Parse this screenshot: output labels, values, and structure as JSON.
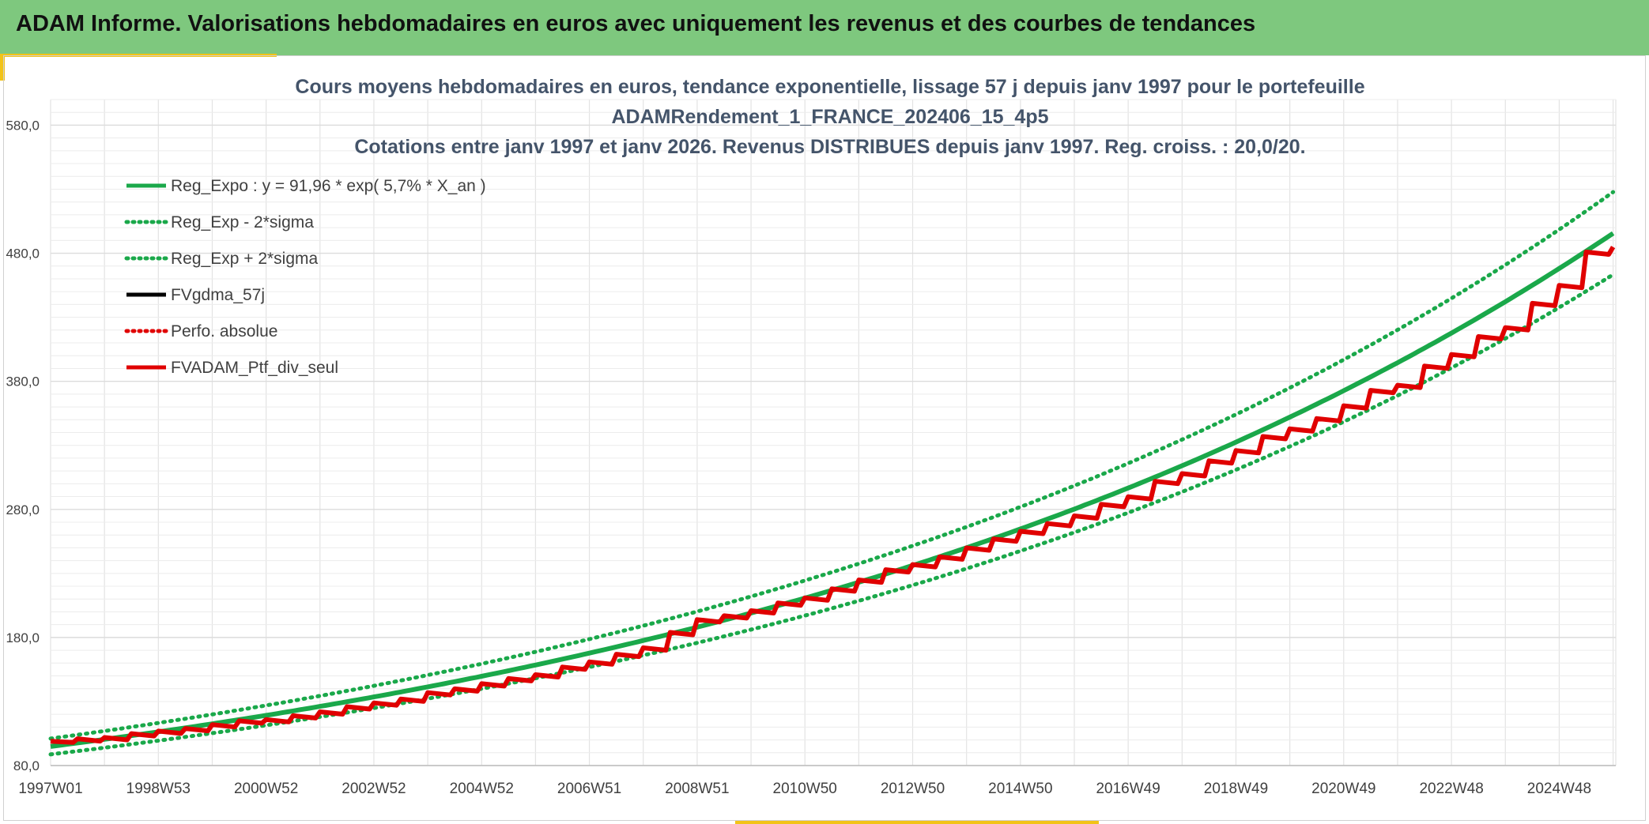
{
  "header": {
    "title": "ADAM Informe. Valorisations hebdomadaires en euros avec uniquement les revenus et des courbes de tendances"
  },
  "colors": {
    "header_bg": "#7ec87e",
    "accent": "#f2c318",
    "regression": "#1aa84a",
    "smoothed": "#000000",
    "portfolio": "#e00000"
  },
  "chart_data": {
    "type": "line",
    "title": [
      "Cours moyens hebdomadaires en euros, tendance exponentielle, lissage 57 j depuis janv 1997 pour le portefeuille",
      "ADAMRendement_1_FRANCE_202406_15_4p5",
      "Cotations entre janv 1997 et janv 2026. Revenus DISTRIBUES depuis janv 1997. Reg. croiss. : 20,0/20."
    ],
    "xlabel": "",
    "ylabel": "",
    "ylim": [
      80,
      600
    ],
    "xlim": [
      1997.0,
      2026.05
    ],
    "grid": true,
    "legend_position": "top-left",
    "y_ticks": [
      "80,0",
      "180,0",
      "280,0",
      "380,0",
      "480,0",
      "580,0"
    ],
    "y_tick_values": [
      80,
      180,
      280,
      380,
      480,
      580
    ],
    "x_ticks": [
      "1997W01",
      "1998W53",
      "2000W52",
      "2002W52",
      "2004W52",
      "2006W51",
      "2008W51",
      "2010W50",
      "2012W50",
      "2014W50",
      "2016W49",
      "2018W49",
      "2020W49",
      "2022W48",
      "2024W48"
    ],
    "x_tick_values": [
      1997.0,
      1999.0,
      2001.0,
      2003.0,
      2005.0,
      2007.0,
      2009.0,
      2011.0,
      2013.0,
      2015.0,
      2017.0,
      2019.0,
      2021.0,
      2023.0,
      2025.0
    ],
    "regression": {
      "a": 91.96,
      "growth": 0.057,
      "sigma_band": 0.065
    },
    "series": [
      {
        "name": "Reg_Expo : y = 91,96 * exp( 5,7% *  X_an )",
        "color": "#1aa84a",
        "style": "solid"
      },
      {
        "name": "Reg_Exp - 2*sigma",
        "color": "#1aa84a",
        "style": "dotted"
      },
      {
        "name": "Reg_Exp + 2*sigma",
        "color": "#1aa84a",
        "style": "dotted"
      },
      {
        "name": "FVgdma_57j",
        "color": "#000000",
        "style": "solid"
      },
      {
        "name": "Perfo. absolue",
        "color": "#e00000",
        "style": "dotted"
      },
      {
        "name": "FVADAM_Ptf_div_seul",
        "color": "#e00000",
        "style": "solid"
      }
    ],
    "portfolio_points": {
      "x": [
        1997.0,
        1997.5,
        1998.0,
        1998.5,
        1999.0,
        1999.5,
        2000.0,
        2000.5,
        2001.0,
        2001.5,
        2002.0,
        2002.5,
        2003.0,
        2003.5,
        2004.0,
        2004.5,
        2005.0,
        2005.5,
        2006.0,
        2006.5,
        2007.0,
        2007.5,
        2008.0,
        2008.5,
        2009.0,
        2009.5,
        2010.0,
        2010.5,
        2011.0,
        2011.5,
        2012.0,
        2012.5,
        2013.0,
        2013.5,
        2014.0,
        2014.5,
        2015.0,
        2015.5,
        2016.0,
        2016.5,
        2017.0,
        2017.5,
        2018.0,
        2018.5,
        2019.0,
        2019.5,
        2020.0,
        2020.5,
        2021.0,
        2021.5,
        2022.0,
        2022.5,
        2023.0,
        2023.5,
        2024.0,
        2024.5,
        2025.0,
        2025.5,
        2026.0
      ],
      "y": [
        99,
        100,
        101,
        104,
        106,
        108,
        111,
        114,
        115,
        118,
        121,
        125,
        128,
        131,
        136,
        139,
        143,
        147,
        150,
        156,
        160,
        166,
        171,
        183,
        193,
        196,
        200,
        206,
        210,
        217,
        224,
        232,
        236,
        242,
        249,
        256,
        262,
        268,
        274,
        283,
        289,
        301,
        307,
        317,
        325,
        336,
        342,
        350,
        360,
        372,
        376,
        391,
        400,
        414,
        421,
        440,
        454,
        480,
        484
      ]
    }
  }
}
